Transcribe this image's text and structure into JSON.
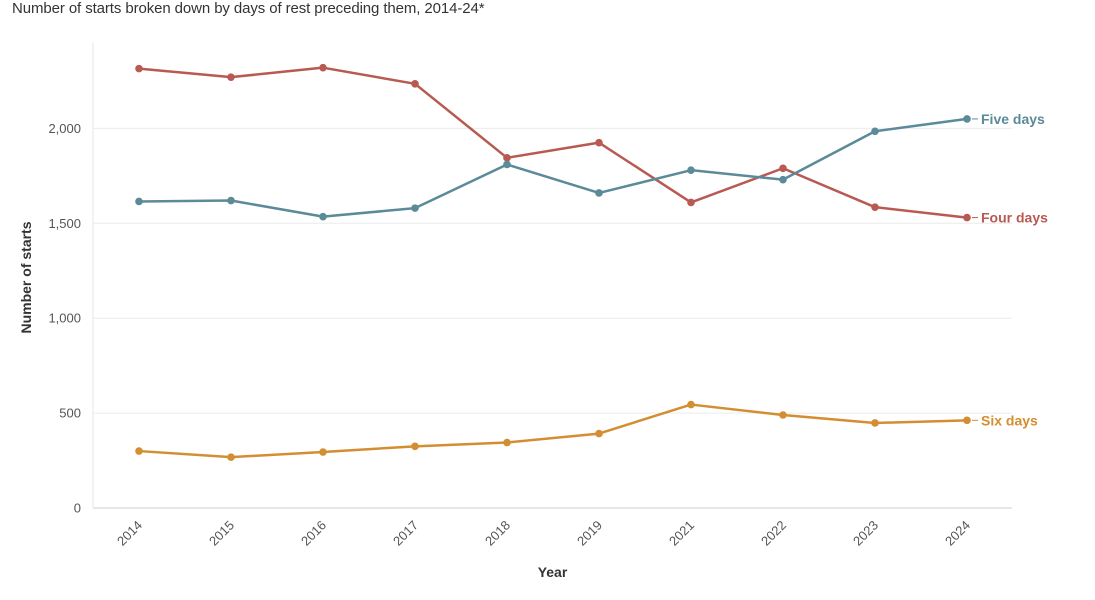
{
  "title": "Number of starts broken down by days of rest preceding them, 2014-24*",
  "chart_data": {
    "type": "line",
    "title": "Number of starts broken down by days of rest preceding them, 2014-24*",
    "xlabel": "Year",
    "ylabel": "Number of starts",
    "categories": [
      "2014",
      "2015",
      "2016",
      "2017",
      "2018",
      "2019",
      "2021",
      "2022",
      "2023",
      "2024"
    ],
    "ylim": [
      0,
      2450
    ],
    "yticks": [
      0,
      500,
      1000,
      1500,
      2000
    ],
    "ytick_labels": [
      "0",
      "500",
      "1,000",
      "1,500",
      "2,000"
    ],
    "grid": true,
    "series": [
      {
        "name": "Four days",
        "color": "#b85a52",
        "values": [
          2315,
          2270,
          2320,
          2235,
          1845,
          1925,
          1610,
          1790,
          1585,
          1530
        ]
      },
      {
        "name": "Five days",
        "color": "#5b8a98",
        "values": [
          1615,
          1620,
          1535,
          1580,
          1810,
          1660,
          1780,
          1730,
          1985,
          2050
        ]
      },
      {
        "name": "Six days",
        "color": "#d48e32",
        "values": [
          300,
          268,
          295,
          325,
          345,
          392,
          545,
          490,
          448,
          462
        ]
      }
    ]
  }
}
